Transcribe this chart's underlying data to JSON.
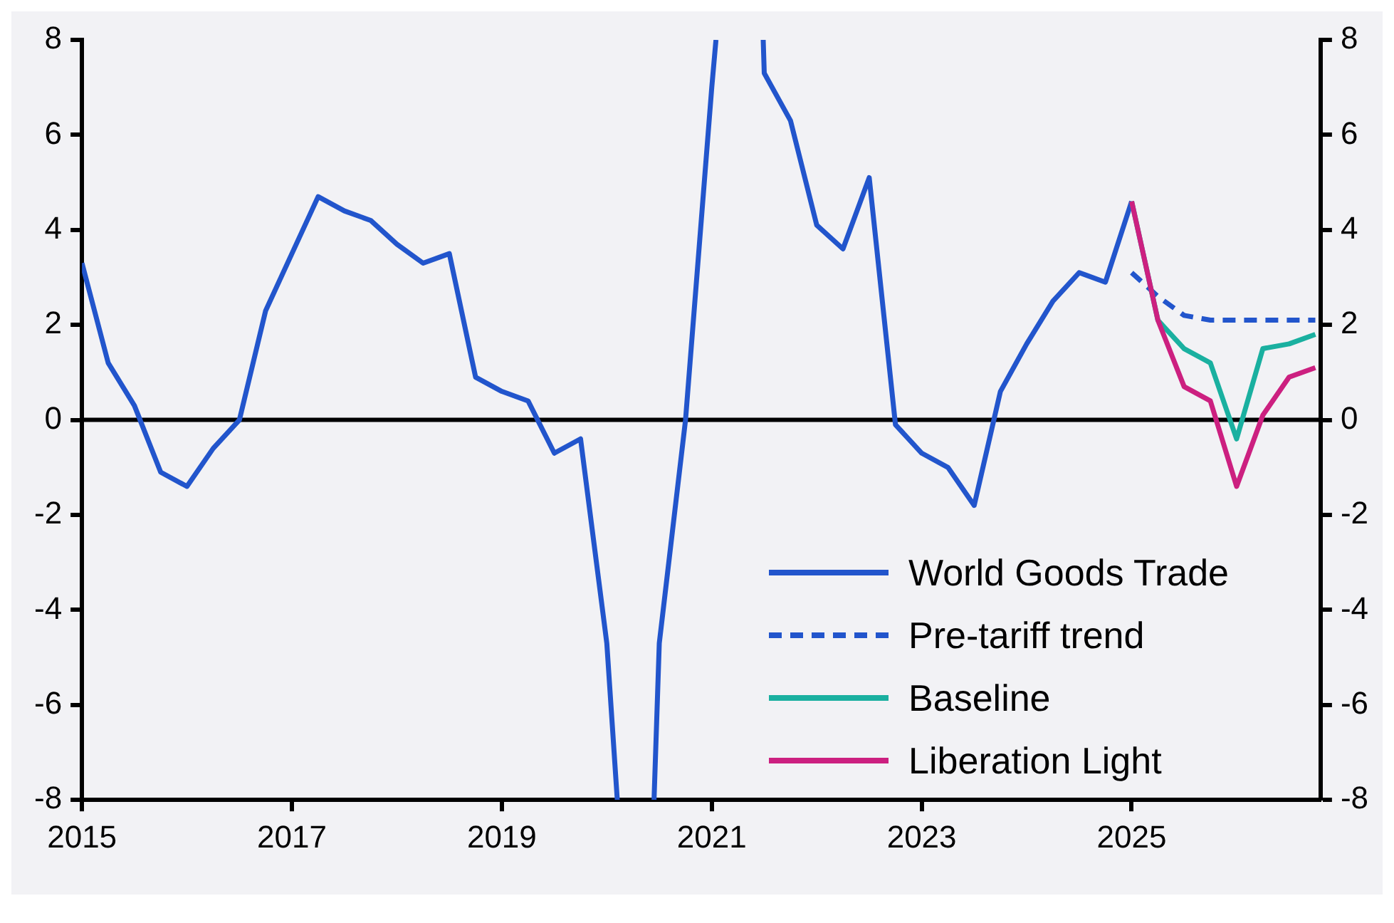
{
  "chart_data": {
    "type": "line",
    "xlim": [
      2015,
      2026.8
    ],
    "xticks": [
      2015,
      2017,
      2019,
      2021,
      2023,
      2025
    ],
    "ylim": [
      -8,
      8
    ],
    "yticks": [
      -8,
      -6,
      -4,
      -2,
      0,
      2,
      4,
      6,
      8
    ],
    "y2lim": [
      -8,
      8
    ],
    "y2ticks": [
      -8,
      -6,
      -4,
      -2,
      0,
      2,
      4,
      6,
      8
    ],
    "grid": false,
    "legend": "bottom right",
    "line_style": "solid",
    "marker": "none",
    "ref_lines": [
      {
        "axis": "y",
        "value": 0,
        "color": "#000000"
      }
    ],
    "series": [
      {
        "name": "World Goods Trade",
        "color": "#2255cc",
        "x": [
          2015,
          2015.25,
          2015.5,
          2015.75,
          2016,
          2016.25,
          2016.5,
          2016.75,
          2017,
          2017.25,
          2017.5,
          2017.75,
          2018,
          2018.25,
          2018.5,
          2018.75,
          2019,
          2019.25,
          2019.5,
          2019.75,
          2020,
          2020.1,
          2020.3,
          2020.45,
          2020.5,
          2020.75,
          2021,
          2021.04,
          2021.3,
          2021.49,
          2021.5,
          2021.75,
          2022,
          2022.25,
          2022.5,
          2022.75,
          2023,
          2023.25,
          2023.5,
          2023.75,
          2024,
          2024.25,
          2024.5,
          2024.75,
          2025
        ],
        "values": [
          3.3,
          1.2,
          0.3,
          -1.1,
          -1.4,
          -0.6,
          0,
          2.3,
          3.5,
          4.7,
          4.4,
          4.2,
          3.7,
          3.3,
          3.5,
          0.9,
          0.6,
          0.4,
          -0.7,
          -0.4,
          -4.7,
          -8,
          null,
          -8,
          -4.7,
          0,
          7,
          8,
          null,
          8,
          7.3,
          6.3,
          4.1,
          3.6,
          5.1,
          -0.1,
          -0.7,
          -1.0,
          -1.8,
          0.6,
          1.6,
          2.5,
          3.1,
          2.9,
          4.6
        ]
      },
      {
        "name": "Pre-tariff trend",
        "color": "#2255cc",
        "line_style": "dashed",
        "x": [
          2025,
          2025.25,
          2025.5,
          2025.75,
          2026,
          2026.25,
          2026.5,
          2026.75
        ],
        "values": [
          3.1,
          2.6,
          2.2,
          2.1,
          2.1,
          2.1,
          2.1,
          2.1
        ]
      },
      {
        "name": "Baseline",
        "color": "#1ab0a0",
        "x": [
          2025,
          2025.25,
          2025.5,
          2025.75,
          2026,
          2026.25,
          2026.5,
          2026.75
        ],
        "values": [
          4.6,
          2.1,
          1.5,
          1.2,
          -0.4,
          1.5,
          1.6,
          1.8
        ]
      },
      {
        "name": "Liberation Light",
        "color": "#cc2080",
        "x": [
          2025,
          2025.25,
          2025.5,
          2025.75,
          2026,
          2026.25,
          2026.5,
          2026.75
        ],
        "values": [
          4.6,
          2.1,
          0.7,
          0.4,
          -1.4,
          0.1,
          0.9,
          1.1
        ]
      }
    ]
  }
}
